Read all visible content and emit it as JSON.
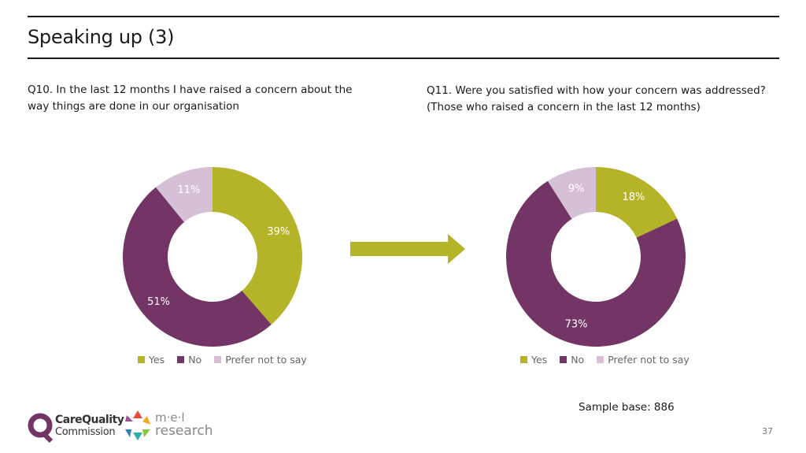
{
  "page": {
    "title": "Speaking up (3)",
    "sample_base": "Sample base: 886",
    "page_number": "37"
  },
  "questions": {
    "q10": "Q10. In the last 12 months I have raised a concern about the\nway things are done in our organisation",
    "q11": "Q11. Were you satisfied with how your concern was addressed?\n(Those who raised a concern in the last 12 months)"
  },
  "logos": {
    "cqc_line1": "CareQuality",
    "cqc_line2": "Commission",
    "mel_line1": "m·e·l",
    "mel_line2": "research"
  },
  "colors": {
    "yes": "#b5b328",
    "no": "#733565",
    "prefer_not": "#d6c0d6",
    "arrow": "#b5b328"
  },
  "chart_data": [
    {
      "type": "pie",
      "donut": true,
      "categories": [
        "Yes",
        "No",
        "Prefer not to say"
      ],
      "values": [
        39,
        51,
        11
      ],
      "labels": [
        "39%",
        "51%",
        "11%"
      ],
      "legend": "bottom"
    },
    {
      "type": "pie",
      "donut": true,
      "categories": [
        "Yes",
        "No",
        "Prefer not to say"
      ],
      "values": [
        18,
        73,
        9
      ],
      "labels": [
        "18%",
        "73%",
        "9%"
      ],
      "legend": "bottom"
    }
  ]
}
